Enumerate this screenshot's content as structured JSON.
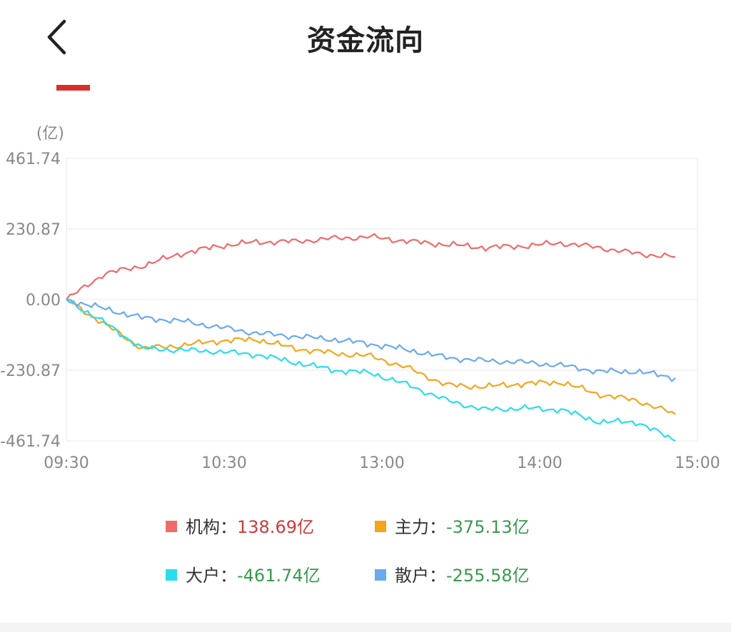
{
  "header": {
    "title": "资金流向",
    "back_icon": "chevron-left-icon"
  },
  "colors": {
    "accent": "#d7302a",
    "positive_text": "#d03a3a",
    "negative_text": "#3a9a4e"
  },
  "legend": [
    {
      "label": "机构：",
      "value": "138.69亿",
      "color": "#ef6b6b",
      "sign": "positive"
    },
    {
      "label": "主力：",
      "value": "-375.13亿",
      "color": "#f4a51c",
      "sign": "negative"
    },
    {
      "label": "大户：",
      "value": "-461.74亿",
      "color": "#29dded",
      "sign": "negative"
    },
    {
      "label": "散户：",
      "value": "-255.58亿",
      "color": "#6aa9ee",
      "sign": "negative"
    }
  ],
  "chart_data": {
    "type": "line",
    "unit_label": "(亿)",
    "ylim": [
      -461.74,
      461.74
    ],
    "y_ticks": [
      461.74,
      230.87,
      0.0,
      -230.87,
      -461.74
    ],
    "y_tick_labels": [
      "461.74",
      "230.87",
      "0.00",
      "-230.87",
      "-461.74"
    ],
    "x_ticks": [
      "09:30",
      "10:30",
      "13:00",
      "14:00",
      "15:00"
    ],
    "x": [
      "09:30",
      "09:45",
      "10:00",
      "10:15",
      "10:30",
      "10:45",
      "11:00",
      "11:15",
      "13:00",
      "13:15",
      "13:30",
      "13:45",
      "14:00",
      "14:15",
      "14:30",
      "14:45",
      "14:57"
    ],
    "grid": true,
    "series": [
      {
        "name": "机构",
        "color": "#ef6b6b",
        "values": [
          0,
          85,
          110,
          150,
          175,
          188,
          190,
          200,
          205,
          190,
          180,
          170,
          175,
          185,
          170,
          150,
          139
        ]
      },
      {
        "name": "主力",
        "color": "#f4a51c",
        "values": [
          0,
          -80,
          -160,
          -150,
          -135,
          -130,
          -160,
          -175,
          -185,
          -225,
          -280,
          -285,
          -275,
          -270,
          -310,
          -330,
          -375
        ]
      },
      {
        "name": "大户",
        "color": "#29dded",
        "values": [
          0,
          -75,
          -160,
          -165,
          -170,
          -180,
          -205,
          -230,
          -240,
          -280,
          -330,
          -360,
          -355,
          -360,
          -400,
          -400,
          -462
        ]
      },
      {
        "name": "散户",
        "color": "#6aa9ee",
        "values": [
          0,
          -30,
          -60,
          -70,
          -90,
          -110,
          -120,
          -130,
          -145,
          -165,
          -190,
          -200,
          -205,
          -215,
          -235,
          -235,
          -256
        ]
      }
    ]
  }
}
